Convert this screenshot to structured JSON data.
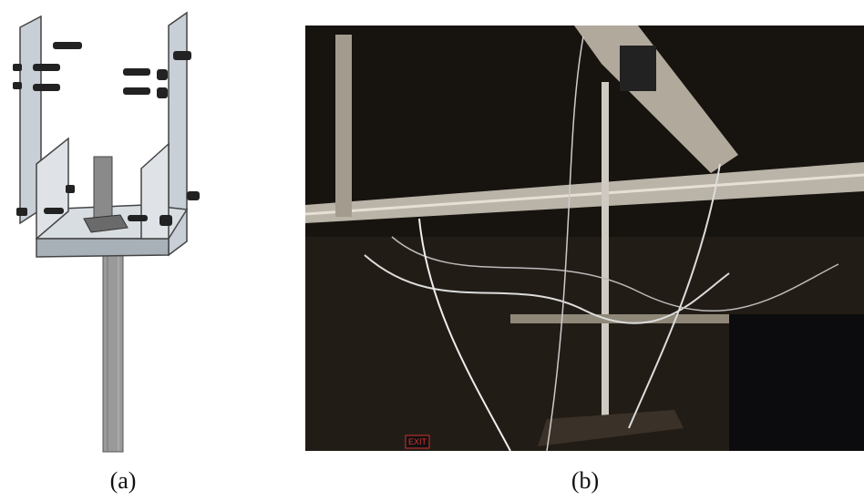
{
  "figure": {
    "panels": [
      {
        "caption": "(a)"
      },
      {
        "caption": "(b)",
        "sign": "EXIT"
      }
    ]
  }
}
